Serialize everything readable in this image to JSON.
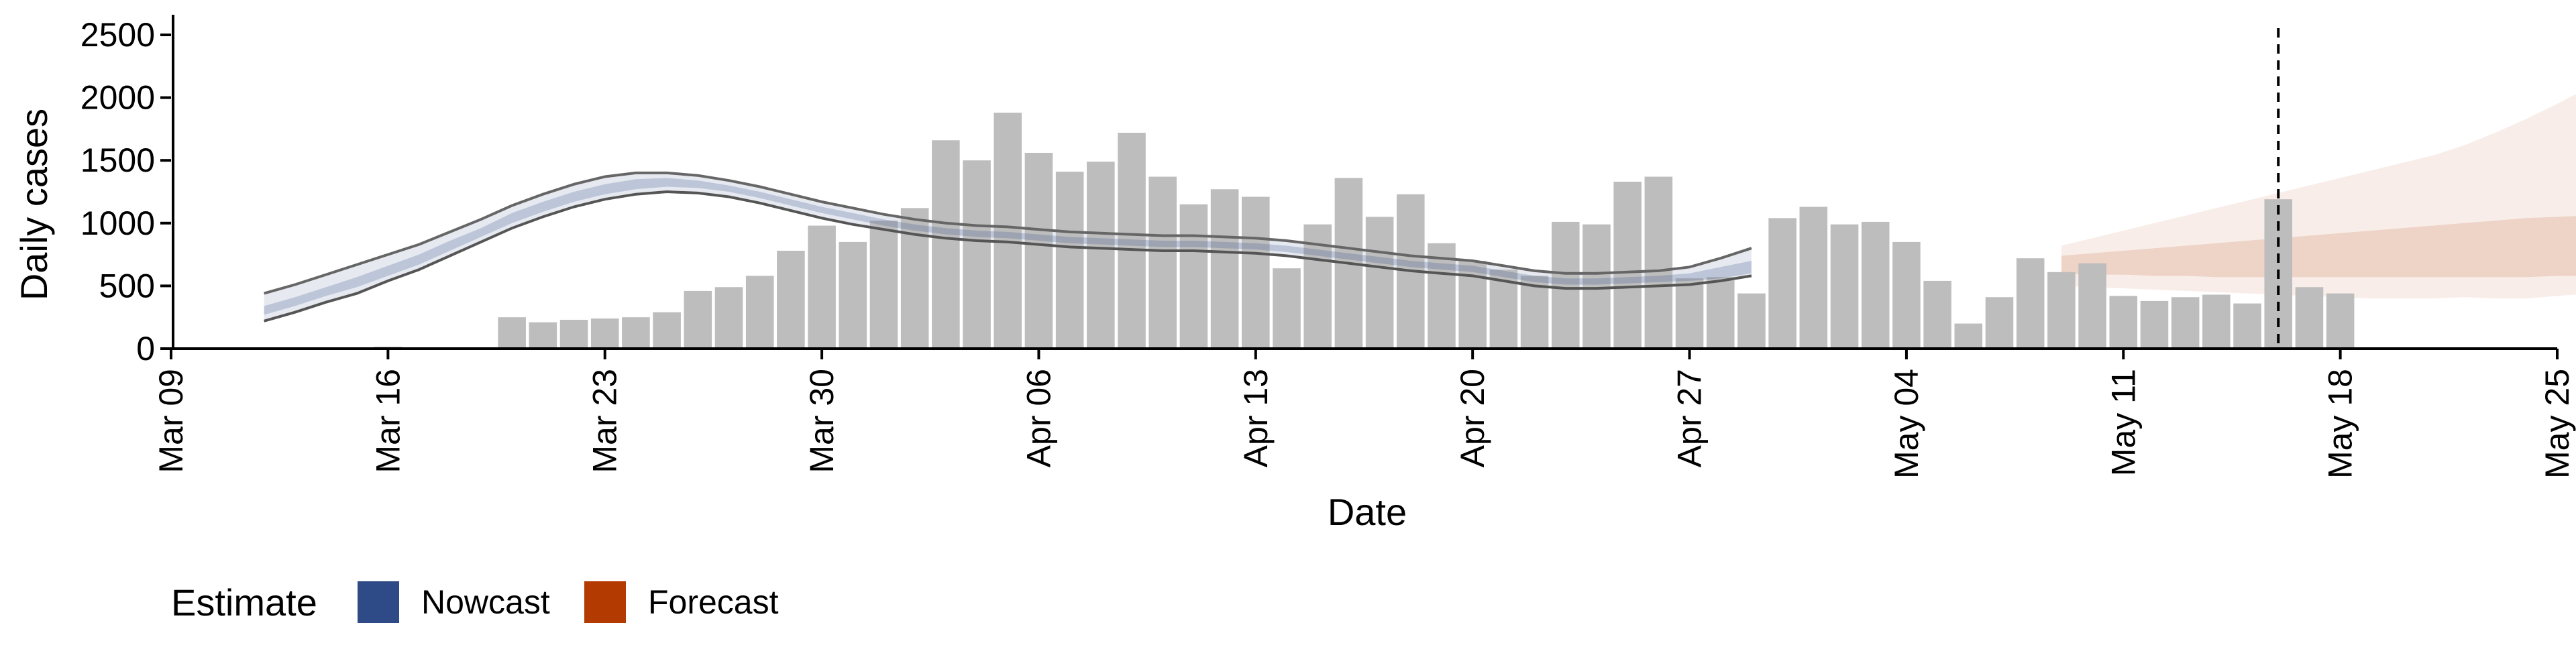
{
  "chart_data": {
    "type": "bar",
    "title": "",
    "xlabel": "Date",
    "ylabel": "Daily cases",
    "x_ticks": [
      "Mar 09",
      "Mar 16",
      "Mar 23",
      "Mar 30",
      "Apr 06",
      "Apr 13",
      "Apr 20",
      "Apr 27",
      "May 04",
      "May 11",
      "May 18",
      "May 25"
    ],
    "y_ticks": [
      "0",
      "500",
      "1000",
      "1500",
      "2000",
      "2500"
    ],
    "xlim": [
      "2020-03-09",
      "2020-05-25"
    ],
    "ylim": [
      0,
      2500
    ],
    "grid": false,
    "legend": {
      "title": "Estimate",
      "position": "bottom-left",
      "items": [
        {
          "label": "Nowcast",
          "color": "#2E4A87"
        },
        {
          "label": "Forecast",
          "color": "#B33A00"
        }
      ]
    },
    "reference_line": {
      "date": "2020-05-16",
      "style": "dashed"
    },
    "bar_color": "#BDBDBD",
    "observed_cases": {
      "start_date": "2020-03-12",
      "values": [
        5,
        10,
        5,
        10,
        15,
        5,
        10,
        10,
        250,
        210,
        230,
        240,
        250,
        290,
        460,
        490,
        580,
        780,
        980,
        850,
        1020,
        1120,
        1660,
        1500,
        1880,
        1560,
        1410,
        1490,
        1720,
        1370,
        1150,
        1270,
        1210,
        640,
        990,
        1360,
        1050,
        1230,
        840,
        700,
        630,
        580,
        1010,
        990,
        1330,
        1370,
        560,
        570,
        440,
        1040,
        1130,
        990,
        1010,
        850,
        540,
        200,
        410,
        720,
        610,
        680,
        420,
        380,
        410,
        430,
        360,
        1190,
        490,
        440
      ]
    },
    "nowcast": {
      "start_date": "2020-03-12",
      "lower_90": [
        220,
        290,
        370,
        440,
        540,
        630,
        740,
        850,
        960,
        1050,
        1130,
        1190,
        1230,
        1250,
        1240,
        1210,
        1160,
        1100,
        1040,
        990,
        950,
        910,
        880,
        860,
        850,
        830,
        810,
        800,
        790,
        780,
        780,
        770,
        760,
        740,
        710,
        680,
        650,
        620,
        600,
        580,
        540,
        500,
        480,
        480,
        490,
        500,
        510,
        540,
        580
      ],
      "lower_50": [
        270,
        340,
        420,
        490,
        580,
        670,
        780,
        890,
        1000,
        1090,
        1170,
        1230,
        1270,
        1290,
        1280,
        1250,
        1200,
        1140,
        1080,
        1030,
        980,
        940,
        910,
        890,
        880,
        860,
        840,
        830,
        820,
        810,
        810,
        800,
        790,
        770,
        740,
        710,
        680,
        650,
        630,
        610,
        570,
        530,
        510,
        510,
        520,
        530,
        540,
        560,
        600
      ],
      "upper_50": [
        340,
        410,
        490,
        570,
        660,
        750,
        860,
        960,
        1080,
        1170,
        1250,
        1310,
        1350,
        1360,
        1340,
        1300,
        1250,
        1190,
        1130,
        1080,
        1030,
        990,
        960,
        940,
        930,
        910,
        890,
        880,
        870,
        860,
        860,
        850,
        840,
        820,
        790,
        760,
        730,
        700,
        680,
        660,
        620,
        580,
        560,
        560,
        570,
        580,
        600,
        650,
        700
      ],
      "upper_90": [
        440,
        510,
        590,
        670,
        750,
        830,
        930,
        1030,
        1140,
        1230,
        1310,
        1370,
        1400,
        1400,
        1380,
        1340,
        1290,
        1230,
        1170,
        1120,
        1070,
        1030,
        1000,
        980,
        970,
        950,
        930,
        920,
        910,
        900,
        900,
        890,
        880,
        860,
        830,
        800,
        770,
        740,
        720,
        700,
        660,
        620,
        600,
        600,
        610,
        620,
        650,
        720,
        800
      ]
    },
    "forecast": {
      "start_date": "2020-05-09",
      "lower_90": [
        500,
        490,
        480,
        470,
        460,
        450,
        440,
        430,
        420,
        410,
        400,
        400,
        400,
        410,
        400,
        400,
        420,
        440,
        420,
        410,
        400
      ],
      "lower_50": [
        600,
        590,
        590,
        580,
        580,
        570,
        570,
        570,
        570,
        570,
        570,
        570,
        570,
        570,
        570,
        570,
        580,
        580,
        580,
        570,
        580
      ],
      "upper_50": [
        740,
        760,
        780,
        800,
        820,
        840,
        860,
        880,
        900,
        920,
        940,
        960,
        980,
        1000,
        1020,
        1040,
        1050,
        1060,
        1070,
        1080,
        1080
      ],
      "upper_90": [
        820,
        880,
        940,
        1000,
        1060,
        1120,
        1180,
        1240,
        1300,
        1360,
        1420,
        1480,
        1540,
        1620,
        1720,
        1830,
        1950,
        2080,
        2200,
        2340,
        2500
      ]
    }
  }
}
